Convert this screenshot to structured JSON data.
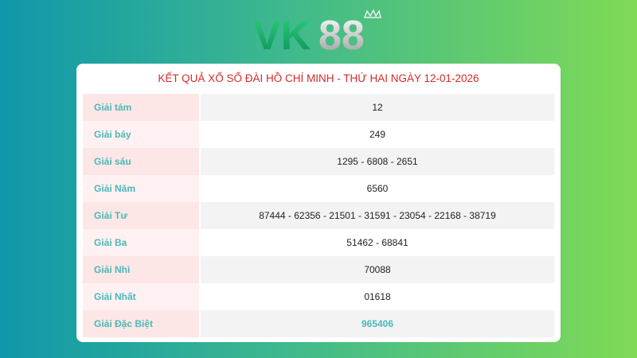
{
  "logo": {
    "text": "VK88",
    "colors": {
      "vk": "#19b46a",
      "eights": "#d8d8d8"
    }
  },
  "title": "KẾT QUẢ XỔ SỐ ĐÀI HỒ CHÍ MINH - THỨ HAI NGÀY 12-01-2026",
  "rows": [
    {
      "label": "Giải tám",
      "value": "12"
    },
    {
      "label": "Giải bảy",
      "value": "249"
    },
    {
      "label": "Giải sáu",
      "value": "1295 - 6808 - 2651"
    },
    {
      "label": "Giải Năm",
      "value": "6560"
    },
    {
      "label": "Giải Tư",
      "value": "87444 - 62356 - 21501 - 31591 - 23054 - 22168 - 38719"
    },
    {
      "label": "Giải Ba",
      "value": "51462 - 68841"
    },
    {
      "label": "Giải Nhì",
      "value": "70088"
    },
    {
      "label": "Giải Nhất",
      "value": "01618"
    },
    {
      "label": "Giải Đặc Biệt",
      "value": "965406"
    }
  ],
  "colors": {
    "title": "#d52a2a",
    "label": "#4bb8b8"
  }
}
